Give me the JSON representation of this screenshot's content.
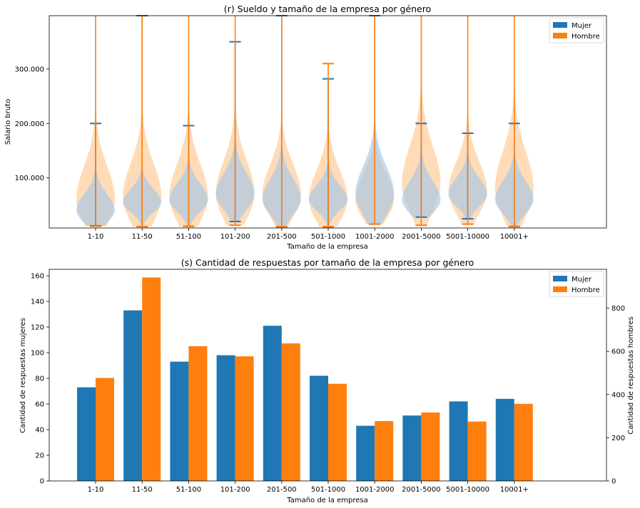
{
  "chart_data": [
    {
      "type": "violin",
      "title": "(r) Sueldo y tamaño de la empresa por género",
      "xlabel": "Tamaño de la empresa",
      "ylabel": "Salario bruto",
      "categories": [
        "1-10",
        "11-50",
        "51-100",
        "101-200",
        "201-500",
        "501-1000",
        "1001-2000",
        "2001-5000",
        "5001-10000",
        "10001+"
      ],
      "ylim": [
        8000,
        398000
      ],
      "yticks": [
        100000,
        200000,
        300000
      ],
      "ytick_labels": [
        "100.000",
        "200.000",
        "300.000"
      ],
      "legend": {
        "position": "top-right",
        "entries": [
          "Mujer",
          "Hombre"
        ]
      },
      "colors": {
        "Mujer": "#1f77b4",
        "Hombre": "#ff7f0e",
        "Mujer_fill": "#a6c8e6",
        "Hombre_fill": "#ffcc99"
      },
      "series": [
        {
          "name": "Mujer",
          "min": [
            12000,
            10500,
            11000,
            20000,
            10000,
            10000,
            15000,
            28000,
            25000,
            10500
          ],
          "max": [
            200000,
            398000,
            196000,
            350000,
            398000,
            282000,
            398000,
            200000,
            182000,
            200000
          ],
          "mode": [
            40000,
            55000,
            60000,
            70000,
            60000,
            60000,
            70000,
            60000,
            70000,
            60000
          ],
          "spread": [
            22000,
            18000,
            22000,
            28000,
            28000,
            20000,
            38000,
            25000,
            22000,
            25000
          ]
        },
        {
          "name": "Hombre",
          "min": [
            11000,
            10500,
            11000,
            13000,
            10500,
            10500,
            15000,
            13000,
            15000,
            11000
          ],
          "max": [
            398000,
            398000,
            398000,
            398000,
            398000,
            310000,
            398000,
            398000,
            398000,
            398000
          ],
          "mode": [
            60000,
            65000,
            65000,
            70000,
            70000,
            60000,
            60000,
            90000,
            75000,
            80000
          ],
          "spread": [
            45000,
            45000,
            45000,
            45000,
            40000,
            40000,
            35000,
            50000,
            40000,
            50000
          ]
        }
      ]
    },
    {
      "type": "bar",
      "title": "(s) Cantidad de respuestas por tamaño de la empresa por género",
      "xlabel": "Tamaño de la empresa",
      "ylabel": "Cantidad de respuestas mujeres",
      "ylabel_right": "Cantidad de respuestas hombres",
      "categories": [
        "1-10",
        "11-50",
        "51-100",
        "101-200",
        "201-500",
        "501-1000",
        "1001-2000",
        "2001-5000",
        "5001-10000",
        "10001+"
      ],
      "ylim": [
        0,
        165
      ],
      "yticks": [
        0,
        20,
        40,
        60,
        80,
        100,
        120,
        140,
        160
      ],
      "ylim_right": [
        0,
        980
      ],
      "yticks_right": [
        0,
        200,
        400,
        600,
        800
      ],
      "legend": {
        "position": "top-right",
        "entries": [
          "Mujer",
          "Hombre"
        ]
      },
      "series": [
        {
          "name": "Mujer",
          "axis": "left",
          "color": "#1f77b4",
          "values": [
            73,
            133,
            93,
            98,
            121,
            82,
            43,
            51,
            62,
            64
          ]
        },
        {
          "name": "Hombre",
          "axis": "right",
          "color": "#ff7f0e",
          "values": [
            477,
            942,
            624,
            577,
            637,
            450,
            277,
            317,
            275,
            357
          ]
        }
      ]
    }
  ]
}
